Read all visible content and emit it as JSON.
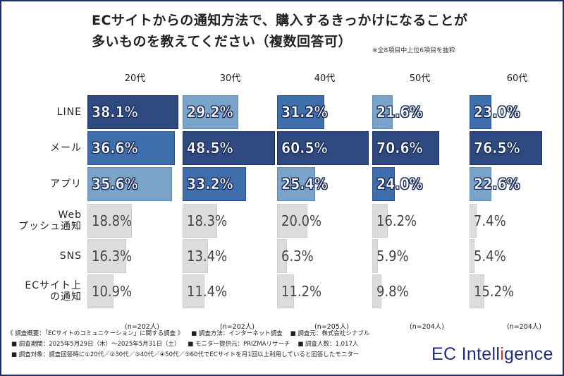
{
  "title_line1": "ECサイトからの通知方法で、購入するきっかけになることが",
  "title_line2": "多いものを教えてください（複数回答可）",
  "note": "※全8項目中上位6項目を抜粋",
  "chart_data": {
    "type": "bar",
    "orientation": "horizontal",
    "title": "ECサイトからの通知方法で、購入するきっかけになることが多いものを教えてください（複数回答可）",
    "categories": [
      "LINE",
      "メール",
      "アプリ",
      "Web プッシュ通知",
      "SNS",
      "ECサイト上の通知"
    ],
    "category_lines": [
      [
        "LINE"
      ],
      [
        "メール"
      ],
      [
        "アプリ"
      ],
      [
        "Web",
        "プッシュ通知"
      ],
      [
        "SNS"
      ],
      [
        "ECサイト上",
        "の通知"
      ]
    ],
    "series": [
      {
        "name": "20代",
        "n": "(n=202人)",
        "xmax": 40,
        "values": [
          38.1,
          36.6,
          35.6,
          18.8,
          16.3,
          10.9
        ],
        "labels": [
          "38.1%",
          "36.6%",
          "35.6%",
          "18.8%",
          "16.3%",
          "10.9%"
        ],
        "ranks": [
          1,
          2,
          3,
          0,
          0,
          0
        ]
      },
      {
        "name": "30代",
        "n": "(n=202人)",
        "xmax": 50,
        "values": [
          29.2,
          48.5,
          33.2,
          18.3,
          13.4,
          11.4
        ],
        "labels": [
          "29.2%",
          "48.5%",
          "33.2%",
          "18.3%",
          "13.4%",
          "11.4%"
        ],
        "ranks": [
          3,
          1,
          2,
          0,
          0,
          0
        ]
      },
      {
        "name": "40代",
        "n": "(n=205人)",
        "xmax": 63,
        "values": [
          31.2,
          60.5,
          25.4,
          20.0,
          6.3,
          11.2
        ],
        "labels": [
          "31.2%",
          "60.5%",
          "25.4%",
          "20.0%",
          "6.3%",
          "11.2%"
        ],
        "ranks": [
          2,
          1,
          3,
          0,
          0,
          0
        ]
      },
      {
        "name": "50代",
        "n": "(n=204人)",
        "xmax": 100,
        "values": [
          21.6,
          70.6,
          24.0,
          16.2,
          5.9,
          9.8
        ],
        "labels": [
          "21.6%",
          "70.6%",
          "24.0%",
          "16.2%",
          "5.9%",
          "9.8%"
        ],
        "ranks": [
          3,
          1,
          2,
          0,
          0,
          0
        ]
      },
      {
        "name": "60代",
        "n": "(n=204人)",
        "xmax": 100,
        "values": [
          23.0,
          76.5,
          22.6,
          7.4,
          5.4,
          15.2
        ],
        "labels": [
          "23.0%",
          "76.5%",
          "22.6%",
          "7.4%",
          "5.4%",
          "15.2%"
        ],
        "ranks": [
          2,
          1,
          3,
          0,
          0,
          0
        ]
      }
    ],
    "rank_colors": {
      "1": "#2e4a80",
      "2": "#3f6ead",
      "3": "#7aa3c9",
      "0": "#dcdcdc"
    },
    "unit": "%",
    "grid": false,
    "legend": "none"
  },
  "footer": {
    "line1a": "《 調査概要：「ECサイトのコミュニケーション」に関する調査 》",
    "line1b": "■ 調査方法：インターネット調査",
    "line1c": "■ 調査元：株式会社シナブル",
    "line2a": "■ 調査期間：2025年5月29日（木）～2025年5月31日（土）",
    "line2b": "■ モニター提供元：PRIZMAリサーチ",
    "line2c": "■ 調査人数：1,017人",
    "line3": "■ 調査対象：調査回答時に①20代／②30代／③40代／④50代／⑤60代でECサイトを月1回以上利用していると回答したモニター"
  },
  "logo": {
    "pre": "EC Intell",
    "dot_letter": "i",
    "post": "gence",
    "brand_color": "#1f2d7b",
    "accent_color": "#e0312b"
  }
}
